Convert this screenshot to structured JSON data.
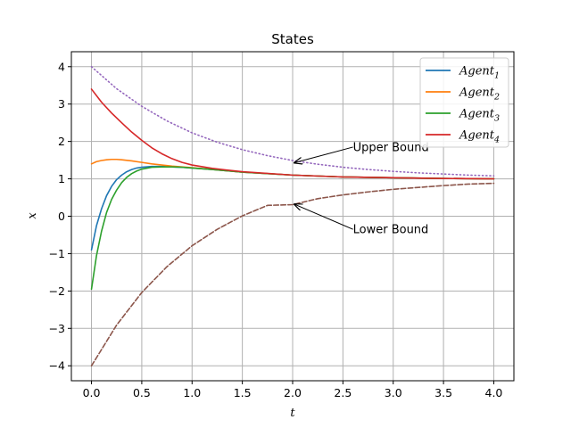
{
  "chart_data": {
    "type": "line",
    "title": "States",
    "xlabel": "t",
    "ylabel": "x",
    "xlim": [
      -0.2,
      4.2
    ],
    "ylim": [
      -4.4,
      4.4
    ],
    "xticks": [
      "0.0",
      "0.5",
      "1.0",
      "1.5",
      "2.0",
      "2.5",
      "3.0",
      "3.5",
      "4.0"
    ],
    "yticks": [
      "4",
      "3",
      "2",
      "1",
      "0",
      "−1",
      "−2",
      "−3",
      "−4"
    ],
    "grid": true,
    "legend_position": "top-right",
    "series": [
      {
        "name": "Agent1",
        "legend_base": "Agent",
        "legend_sub": "1",
        "color": "#1f77b4",
        "style": "solid",
        "points": [
          [
            0,
            -0.9
          ],
          [
            0.05,
            -0.25
          ],
          [
            0.1,
            0.2
          ],
          [
            0.15,
            0.55
          ],
          [
            0.2,
            0.8
          ],
          [
            0.25,
            0.98
          ],
          [
            0.3,
            1.1
          ],
          [
            0.35,
            1.19
          ],
          [
            0.4,
            1.25
          ],
          [
            0.45,
            1.29
          ],
          [
            0.5,
            1.31
          ],
          [
            0.6,
            1.33
          ],
          [
            0.7,
            1.33
          ],
          [
            0.8,
            1.32
          ],
          [
            0.9,
            1.31
          ],
          [
            1.0,
            1.29
          ],
          [
            1.2,
            1.25
          ],
          [
            1.5,
            1.18
          ],
          [
            2.0,
            1.1
          ],
          [
            2.5,
            1.05
          ],
          [
            3.0,
            1.03
          ],
          [
            3.5,
            1.01
          ],
          [
            4.0,
            1.0
          ]
        ]
      },
      {
        "name": "Agent2",
        "legend_base": "Agent",
        "legend_sub": "2",
        "color": "#ff7f0e",
        "style": "solid",
        "points": [
          [
            0,
            1.4
          ],
          [
            0.05,
            1.46
          ],
          [
            0.1,
            1.49
          ],
          [
            0.15,
            1.51
          ],
          [
            0.2,
            1.52
          ],
          [
            0.25,
            1.52
          ],
          [
            0.3,
            1.51
          ],
          [
            0.4,
            1.48
          ],
          [
            0.5,
            1.44
          ],
          [
            0.6,
            1.4
          ],
          [
            0.7,
            1.37
          ],
          [
            0.8,
            1.34
          ],
          [
            0.9,
            1.32
          ],
          [
            1.0,
            1.3
          ],
          [
            1.2,
            1.25
          ],
          [
            1.5,
            1.18
          ],
          [
            2.0,
            1.1
          ],
          [
            2.5,
            1.05
          ],
          [
            3.0,
            1.03
          ],
          [
            3.5,
            1.01
          ],
          [
            4.0,
            1.0
          ]
        ]
      },
      {
        "name": "Agent3",
        "legend_base": "Agent",
        "legend_sub": "3",
        "color": "#2ca02c",
        "style": "solid",
        "points": [
          [
            0,
            -1.95
          ],
          [
            0.05,
            -1.05
          ],
          [
            0.1,
            -0.4
          ],
          [
            0.15,
            0.1
          ],
          [
            0.2,
            0.45
          ],
          [
            0.25,
            0.7
          ],
          [
            0.3,
            0.9
          ],
          [
            0.35,
            1.04
          ],
          [
            0.4,
            1.14
          ],
          [
            0.45,
            1.21
          ],
          [
            0.5,
            1.26
          ],
          [
            0.6,
            1.31
          ],
          [
            0.7,
            1.32
          ],
          [
            0.8,
            1.32
          ],
          [
            0.9,
            1.31
          ],
          [
            1.0,
            1.29
          ],
          [
            1.2,
            1.25
          ],
          [
            1.5,
            1.18
          ],
          [
            2.0,
            1.1
          ],
          [
            2.5,
            1.05
          ],
          [
            3.0,
            1.03
          ],
          [
            3.5,
            1.01
          ],
          [
            4.0,
            1.0
          ]
        ]
      },
      {
        "name": "Agent4",
        "legend_base": "Agent",
        "legend_sub": "4",
        "color": "#d62728",
        "style": "solid",
        "points": [
          [
            0,
            3.4
          ],
          [
            0.1,
            3.05
          ],
          [
            0.2,
            2.76
          ],
          [
            0.3,
            2.5
          ],
          [
            0.4,
            2.25
          ],
          [
            0.5,
            2.03
          ],
          [
            0.6,
            1.83
          ],
          [
            0.7,
            1.67
          ],
          [
            0.8,
            1.54
          ],
          [
            0.9,
            1.44
          ],
          [
            1.0,
            1.37
          ],
          [
            1.2,
            1.28
          ],
          [
            1.5,
            1.19
          ],
          [
            2.0,
            1.1
          ],
          [
            2.5,
            1.05
          ],
          [
            3.0,
            1.03
          ],
          [
            3.5,
            1.01
          ],
          [
            4.0,
            1.0
          ]
        ]
      },
      {
        "name": "upper-bound",
        "color": "#9467bd",
        "style": "dotted",
        "in_legend": false,
        "points": [
          [
            0,
            4.0
          ],
          [
            0.25,
            3.41
          ],
          [
            0.5,
            2.94
          ],
          [
            0.75,
            2.55
          ],
          [
            1.0,
            2.23
          ],
          [
            1.25,
            1.98
          ],
          [
            1.5,
            1.78
          ],
          [
            1.75,
            1.62
          ],
          [
            2.0,
            1.49
          ],
          [
            2.25,
            1.39
          ],
          [
            2.5,
            1.31
          ],
          [
            2.75,
            1.25
          ],
          [
            3.0,
            1.2
          ],
          [
            3.25,
            1.16
          ],
          [
            3.5,
            1.13
          ],
          [
            3.75,
            1.1
          ],
          [
            4.0,
            1.08
          ]
        ]
      },
      {
        "name": "lower-bound",
        "color": "#8c564b",
        "style": "dashed",
        "in_legend": false,
        "points": [
          [
            0,
            -4.0
          ],
          [
            0.25,
            -2.91
          ],
          [
            0.5,
            -2.04
          ],
          [
            0.75,
            -1.35
          ],
          [
            1.0,
            -0.79
          ],
          [
            1.25,
            -0.35
          ],
          [
            1.5,
            0.01
          ],
          [
            1.75,
            0.29
          ],
          [
            2.0,
            0.31
          ],
          [
            2.25,
            0.47
          ],
          [
            2.5,
            0.57
          ],
          [
            2.75,
            0.65
          ],
          [
            3.0,
            0.72
          ],
          [
            3.25,
            0.77
          ],
          [
            3.5,
            0.82
          ],
          [
            3.75,
            0.86
          ],
          [
            4.0,
            0.88
          ]
        ]
      }
    ],
    "annotations": [
      {
        "text": "Upper Bound",
        "text_xy": [
          2.6,
          1.85
        ],
        "point": [
          2.0,
          1.43
        ]
      },
      {
        "text": "Lower Bound",
        "text_xy": [
          2.6,
          -0.35
        ],
        "point": [
          2.0,
          0.32
        ]
      }
    ]
  }
}
